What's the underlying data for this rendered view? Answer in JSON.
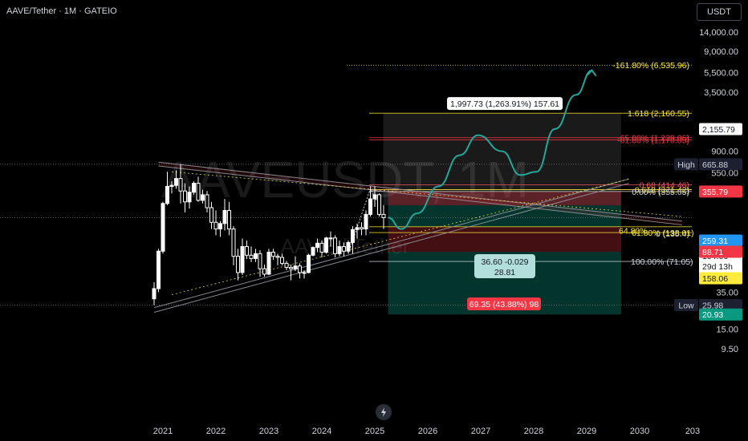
{
  "header": {
    "title": "AAVE/Tether · 1M · GATEIO"
  },
  "watermark": {
    "symbol": "AAVEUSDT, 1M",
    "name": "AAVE / Tether"
  },
  "axis": {
    "currency": "USDT",
    "y_ticks": [
      "14,000.00",
      "9,000.00",
      "5,500.00",
      "3,500.00",
      "1,500.00",
      "900.00",
      "550.00",
      "350.00",
      "55.00",
      "35.00",
      "15.00",
      "9.50"
    ],
    "x_ticks": [
      "2021",
      "2022",
      "2023",
      "2024",
      "2025",
      "2026",
      "2027",
      "2028",
      "2029",
      "2030",
      "203"
    ]
  },
  "price_tags": [
    {
      "text": "2,155.79",
      "bg": "#ffffff",
      "fg": "#131722"
    },
    {
      "text": "665.88",
      "bg": "#1c2030",
      "fg": "#d1d4dc",
      "prefix": "High"
    },
    {
      "text": "355.79",
      "bg": "#f23645",
      "fg": "#ffffff"
    },
    {
      "text": "259.31",
      "bg": "#2196f3",
      "fg": "#ffffff"
    },
    {
      "text": "194.66",
      "bg": "#ffffff",
      "fg": "#131722",
      "sub": "29d 13h"
    },
    {
      "text": "158.06",
      "bg": "#ffeb3b",
      "fg": "#131722"
    },
    {
      "text": "88.71",
      "bg": "#f23645",
      "fg": "#ffffff"
    },
    {
      "text": "25.98",
      "bg": "#1c2030",
      "fg": "#d1d4dc",
      "prefix": "Low"
    },
    {
      "text": "20.93",
      "bg": "#089981",
      "fg": "#ffffff"
    }
  ],
  "fib_labels": [
    {
      "text": "-161.80% (6,535.96)",
      "color": "#ffeb3b"
    },
    {
      "text": "1.618 (2,160.55)",
      "color": "#ffeb3b"
    },
    {
      "text": "-65.00% (1,229.06)",
      "color": "#f23645"
    },
    {
      "text": "-61.80% (1,170.05)",
      "color": "#f23645"
    },
    {
      "text": "0.68 (414.46)",
      "color": "#f7525f"
    },
    {
      "text": "0.618 (371.42)",
      "color": "#ffeb3b"
    },
    {
      "text": "0.00% (355.65)",
      "color": "#d1d4dc"
    },
    {
      "text": "0 (135.4)",
      "color": "#d1d4dc"
    },
    {
      "text": "61.80% (138.01)",
      "color": "#ffeb3b"
    },
    {
      "text": "64.80%",
      "color": "#ffeb3b"
    },
    {
      "text": "100.00% (71.05)",
      "color": "#d1d4dc"
    }
  ],
  "callouts": {
    "target": "1,997.73 (1,263.91%) 157.61",
    "entry_line1": "36.60 -0.029",
    "entry_line2": "28.81",
    "stop": "69.35 (43.88%) 98"
  },
  "chart_data": {
    "type": "candlestick",
    "title": "AAVE/Tether · 1M · GATEIO",
    "scale": "log",
    "ylabel": "USDT",
    "x_range": [
      "2020-10",
      "2031-01"
    ],
    "y_range": [
      9.5,
      14000
    ],
    "candles": [
      {
        "t": "2020-11",
        "o": 30,
        "h": 44,
        "l": 26,
        "c": 38
      },
      {
        "t": "2020-12",
        "o": 38,
        "h": 95,
        "l": 35,
        "c": 90
      },
      {
        "t": "2021-01",
        "o": 90,
        "h": 280,
        "l": 85,
        "c": 270
      },
      {
        "t": "2021-02",
        "o": 270,
        "h": 560,
        "l": 260,
        "c": 400
      },
      {
        "t": "2021-03",
        "o": 400,
        "h": 450,
        "l": 340,
        "c": 410
      },
      {
        "t": "2021-04",
        "o": 410,
        "h": 580,
        "l": 380,
        "c": 480
      },
      {
        "t": "2021-05",
        "o": 480,
        "h": 666,
        "l": 270,
        "c": 360
      },
      {
        "t": "2021-06",
        "o": 360,
        "h": 430,
        "l": 220,
        "c": 280
      },
      {
        "t": "2021-07",
        "o": 280,
        "h": 400,
        "l": 240,
        "c": 350
      },
      {
        "t": "2021-08",
        "o": 350,
        "h": 450,
        "l": 330,
        "c": 430
      },
      {
        "t": "2021-09",
        "o": 430,
        "h": 500,
        "l": 280,
        "c": 290
      },
      {
        "t": "2021-10",
        "o": 290,
        "h": 370,
        "l": 270,
        "c": 330
      },
      {
        "t": "2021-11",
        "o": 330,
        "h": 360,
        "l": 220,
        "c": 245
      },
      {
        "t": "2021-12",
        "o": 245,
        "h": 280,
        "l": 150,
        "c": 175
      },
      {
        "t": "2022-01",
        "o": 175,
        "h": 230,
        "l": 130,
        "c": 150
      },
      {
        "t": "2022-02",
        "o": 150,
        "h": 180,
        "l": 125,
        "c": 170
      },
      {
        "t": "2022-03",
        "o": 170,
        "h": 300,
        "l": 145,
        "c": 230
      },
      {
        "t": "2022-04",
        "o": 230,
        "h": 280,
        "l": 130,
        "c": 150
      },
      {
        "t": "2022-05",
        "o": 150,
        "h": 160,
        "l": 65,
        "c": 80
      },
      {
        "t": "2022-06",
        "o": 80,
        "h": 95,
        "l": 46,
        "c": 55
      },
      {
        "t": "2022-07",
        "o": 55,
        "h": 120,
        "l": 52,
        "c": 100
      },
      {
        "t": "2022-08",
        "o": 100,
        "h": 115,
        "l": 75,
        "c": 82
      },
      {
        "t": "2022-09",
        "o": 82,
        "h": 100,
        "l": 70,
        "c": 76
      },
      {
        "t": "2022-10",
        "o": 76,
        "h": 95,
        "l": 70,
        "c": 85
      },
      {
        "t": "2022-11",
        "o": 85,
        "h": 92,
        "l": 50,
        "c": 60
      },
      {
        "t": "2022-12",
        "o": 60,
        "h": 66,
        "l": 50,
        "c": 53
      },
      {
        "t": "2023-01",
        "o": 53,
        "h": 95,
        "l": 52,
        "c": 88
      },
      {
        "t": "2023-02",
        "o": 88,
        "h": 95,
        "l": 74,
        "c": 80
      },
      {
        "t": "2023-03",
        "o": 80,
        "h": 85,
        "l": 65,
        "c": 78
      },
      {
        "t": "2023-04",
        "o": 78,
        "h": 85,
        "l": 65,
        "c": 68
      },
      {
        "t": "2023-05",
        "o": 68,
        "h": 72,
        "l": 58,
        "c": 62
      },
      {
        "t": "2023-06",
        "o": 62,
        "h": 66,
        "l": 46,
        "c": 60
      },
      {
        "t": "2023-07",
        "o": 60,
        "h": 80,
        "l": 57,
        "c": 64
      },
      {
        "t": "2023-08",
        "o": 64,
        "h": 68,
        "l": 48,
        "c": 55
      },
      {
        "t": "2023-09",
        "o": 55,
        "h": 58,
        "l": 48,
        "c": 55
      },
      {
        "t": "2023-10",
        "o": 55,
        "h": 85,
        "l": 54,
        "c": 82
      },
      {
        "t": "2023-11",
        "o": 82,
        "h": 100,
        "l": 80,
        "c": 98
      },
      {
        "t": "2023-12",
        "o": 98,
        "h": 120,
        "l": 88,
        "c": 108
      },
      {
        "t": "2024-01",
        "o": 108,
        "h": 115,
        "l": 78,
        "c": 88
      },
      {
        "t": "2024-02",
        "o": 88,
        "h": 125,
        "l": 85,
        "c": 122
      },
      {
        "t": "2024-03",
        "o": 122,
        "h": 142,
        "l": 100,
        "c": 122
      },
      {
        "t": "2024-04",
        "o": 122,
        "h": 130,
        "l": 78,
        "c": 85
      },
      {
        "t": "2024-05",
        "o": 85,
        "h": 115,
        "l": 80,
        "c": 100
      },
      {
        "t": "2024-06",
        "o": 100,
        "h": 110,
        "l": 80,
        "c": 90
      },
      {
        "t": "2024-07",
        "o": 90,
        "h": 115,
        "l": 85,
        "c": 110
      },
      {
        "t": "2024-08",
        "o": 110,
        "h": 160,
        "l": 85,
        "c": 148
      },
      {
        "t": "2024-09",
        "o": 148,
        "h": 170,
        "l": 120,
        "c": 155
      },
      {
        "t": "2024-10",
        "o": 155,
        "h": 175,
        "l": 130,
        "c": 150
      },
      {
        "t": "2024-11",
        "o": 150,
        "h": 230,
        "l": 130,
        "c": 210
      },
      {
        "t": "2024-12",
        "o": 210,
        "h": 400,
        "l": 200,
        "c": 300
      },
      {
        "t": "2025-01",
        "o": 300,
        "h": 400,
        "l": 250,
        "c": 330
      },
      {
        "t": "2025-02",
        "o": 330,
        "h": 340,
        "l": 200,
        "c": 210
      },
      {
        "t": "2025-03",
        "o": 210,
        "h": 260,
        "l": 150,
        "c": 195
      }
    ],
    "levels": {
      "high": 665.88,
      "low": 25.98,
      "current": 194.66,
      "target": 2160.55,
      "stop": 88.71
    }
  }
}
